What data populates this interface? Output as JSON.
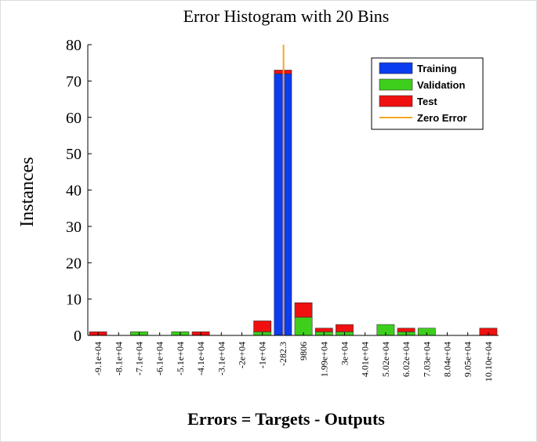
{
  "chart_data": {
    "type": "stacked-bar",
    "title": "Error Histogram with 20 Bins",
    "x_label": "Errors = Targets - Outputs",
    "y_label": "Instances",
    "categories": [
      "-9.1e+04",
      "-8.1e+04",
      "-7.1e+04",
      "-6.1e+04",
      "-5.1e+04",
      "-4.1e+04",
      "-3.1e+04",
      "-2e+04",
      "-1e+04",
      "-282.3",
      "9806",
      "1.99e+04",
      "3e+04",
      "4.01e+04",
      "5.02e+04",
      "6.02e+04",
      "7.03e+04",
      "8.04e+04",
      "9.05e+04",
      "10.10e+04"
    ],
    "series": [
      {
        "name": "Training",
        "color": "#0a3cf0",
        "values": [
          0,
          0,
          0,
          0,
          0,
          0,
          0,
          0,
          0,
          72,
          0,
          0,
          0,
          0,
          0,
          0,
          0,
          0,
          0,
          0
        ]
      },
      {
        "name": "Validation",
        "color": "#3ecf1c",
        "values": [
          0,
          0,
          1,
          0,
          1,
          0,
          0,
          0,
          1,
          0,
          5,
          1,
          1,
          0,
          3,
          1,
          2,
          0,
          0,
          0
        ]
      },
      {
        "name": "Test",
        "color": "#f01010",
        "values": [
          1,
          0,
          0,
          0,
          0,
          1,
          0,
          0,
          3,
          1,
          4,
          1,
          2,
          0,
          0,
          1,
          0,
          0,
          0,
          2
        ]
      }
    ],
    "reference_line": {
      "name": "Zero Error",
      "color": "#f5a623",
      "value": 0
    },
    "ylim": [
      0,
      80
    ],
    "yticks": [
      0,
      10,
      20,
      30,
      40,
      50,
      60,
      70,
      80
    ],
    "legend": "top-right"
  }
}
